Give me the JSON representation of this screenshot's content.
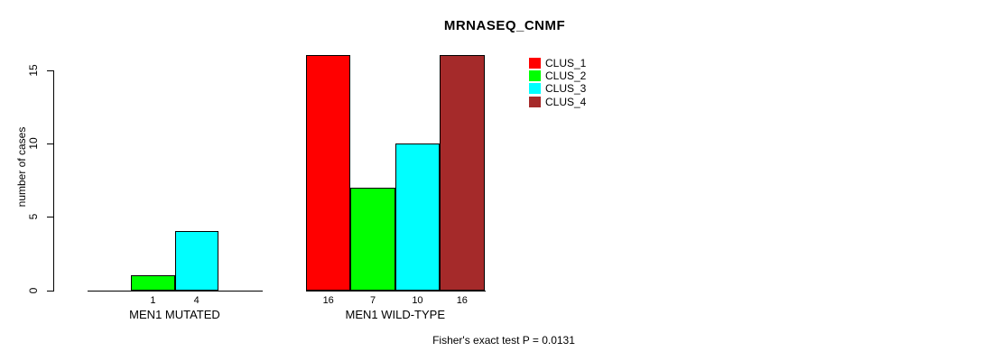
{
  "chart_data": {
    "type": "bar",
    "title": "MRNASEQ_CNMF",
    "ylabel": "number of cases",
    "categories": [
      "MEN1 MUTATED",
      "MEN1 WILD-TYPE"
    ],
    "series": [
      {
        "name": "CLUS_1",
        "color": "#FF0000",
        "values": [
          0,
          16
        ]
      },
      {
        "name": "CLUS_2",
        "color": "#00FF00",
        "values": [
          1,
          7
        ]
      },
      {
        "name": "CLUS_3",
        "color": "#00FFFF",
        "values": [
          4,
          10
        ]
      },
      {
        "name": "CLUS_4",
        "color": "#A52A2A",
        "values": [
          0,
          16
        ]
      }
    ],
    "yticks": [
      0,
      5,
      10,
      15
    ],
    "ylim": [
      0,
      15
    ],
    "grid": false,
    "legend_position": "top-right",
    "bar_border_color": "#000000",
    "footnote": "Fisher's exact test P = 0.0131"
  }
}
